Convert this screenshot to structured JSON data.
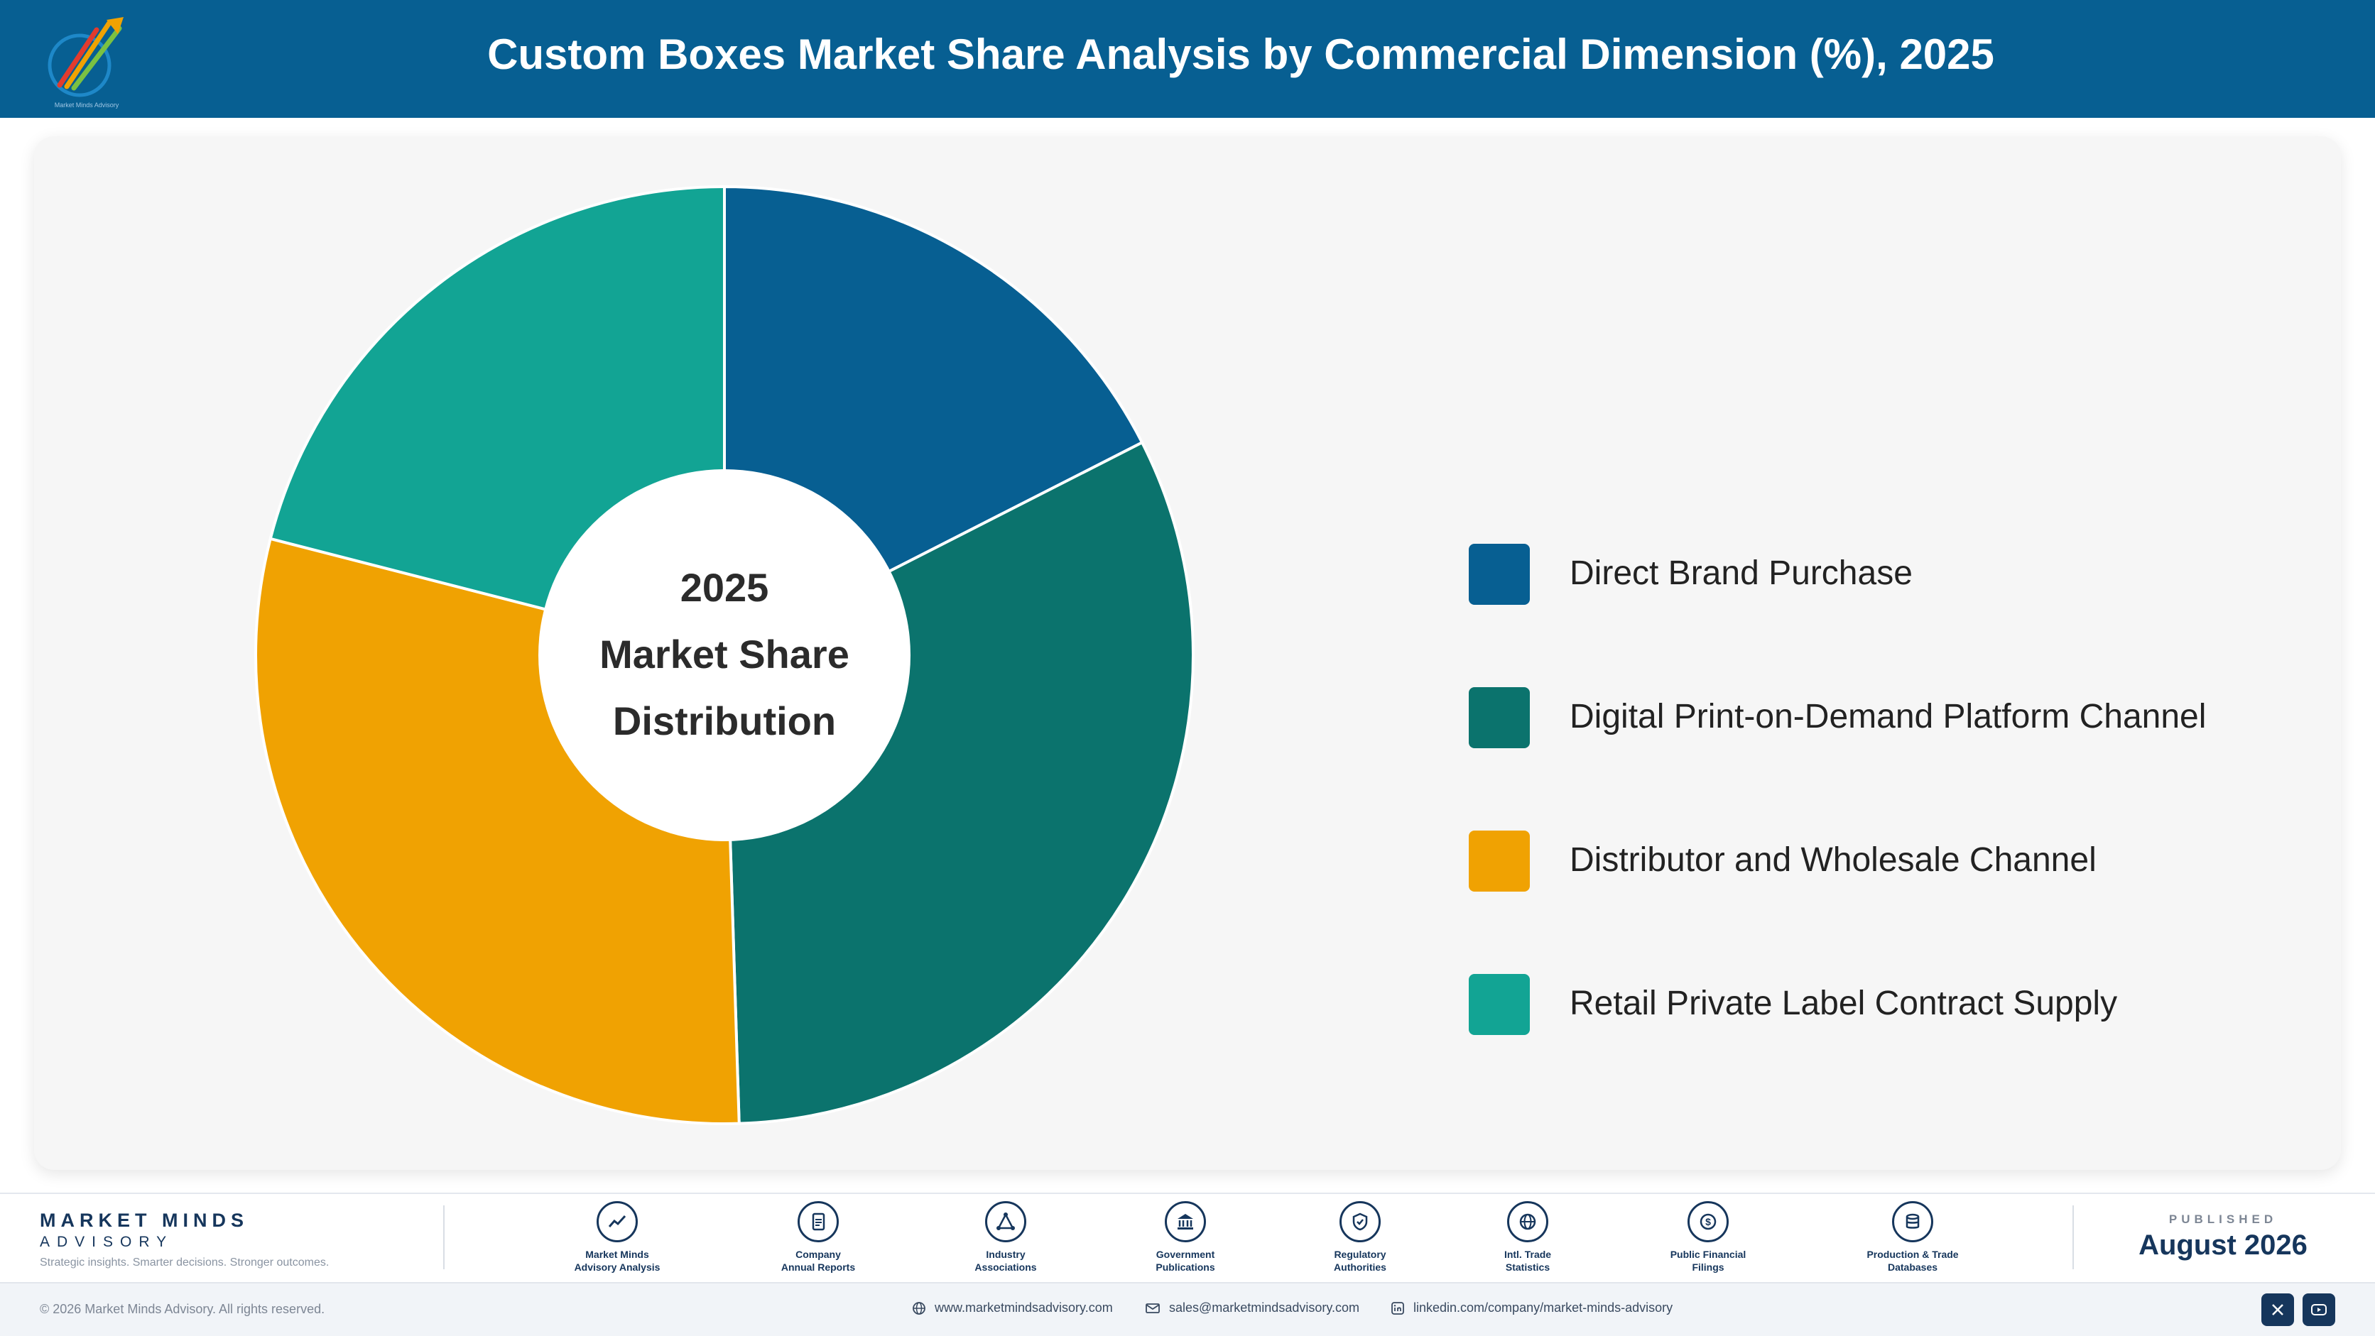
{
  "header": {
    "title": "Custom Boxes Market Share Analysis by Commercial Dimension (%), 2025",
    "logo_text": "Market Minds Advisory"
  },
  "chart_data": {
    "type": "pie",
    "title": "Custom Boxes Market Share Analysis by Commercial Dimension (%), 2025",
    "center_label": [
      "2025",
      "Market Share",
      "Distribution"
    ],
    "categories": [
      "Direct Brand Purchase",
      "Digital Print-on-Demand Platform Channel",
      "Distributor and Wholesale Channel",
      "Retail Private Label Contract Supply"
    ],
    "values": [
      17.5,
      32.0,
      29.5,
      21.0
    ],
    "colors": [
      "#075f92",
      "#0b736d",
      "#f0a202",
      "#12a494"
    ],
    "legend_position": "right"
  },
  "footer": {
    "brand": {
      "name": "MARKET MINDS",
      "sub": "ADVISORY",
      "tagline": "Strategic insights. Smarter decisions. Stronger outcomes."
    },
    "sources": [
      {
        "label": "Market Minds\nAdvisory Analysis",
        "icon": "trend-icon"
      },
      {
        "label": "Company\nAnnual Reports",
        "icon": "document-icon"
      },
      {
        "label": "Industry\nAssociations",
        "icon": "network-icon"
      },
      {
        "label": "Government\nPublications",
        "icon": "government-icon"
      },
      {
        "label": "Regulatory\nAuthorities",
        "icon": "shield-icon"
      },
      {
        "label": "Intl. Trade\nStatistics",
        "icon": "globe-icon"
      },
      {
        "label": "Public Financial\nFilings",
        "icon": "dollar-icon"
      },
      {
        "label": "Production & Trade\nDatabases",
        "icon": "database-icon"
      }
    ],
    "published_label": "PUBLISHED",
    "published_date": "August 2026",
    "copyright": "© 2026 Market Minds Advisory. All rights reserved.",
    "website": "www.marketmindsadvisory.com",
    "email": "sales@marketmindsadvisory.com",
    "linkedin": "linkedin.com/company/market-minds-advisory"
  }
}
